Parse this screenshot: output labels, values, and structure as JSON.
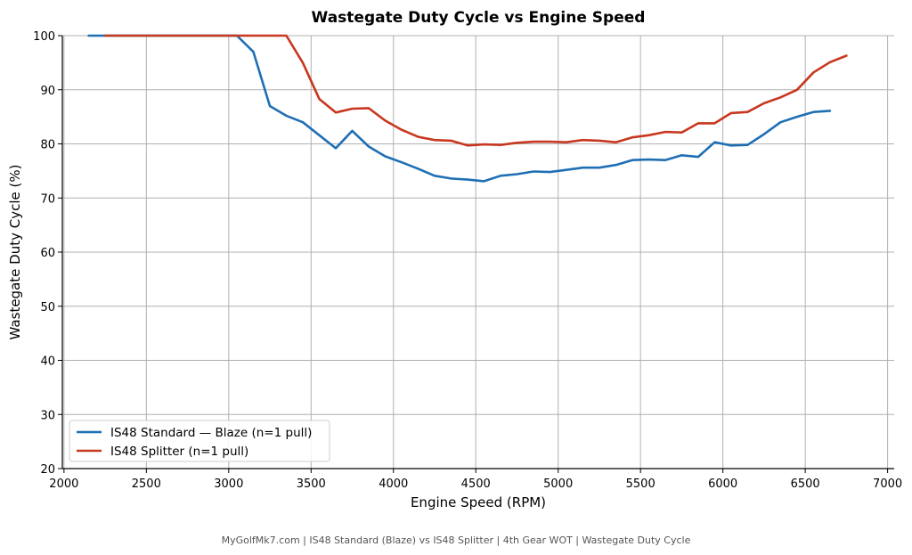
{
  "chart_data": {
    "type": "line",
    "title": "Wastegate Duty Cycle vs Engine Speed",
    "xlabel": "Engine Speed (RPM)",
    "ylabel": "Wastegate Duty Cycle (%)",
    "xlim": [
      1990,
      7040
    ],
    "ylim": [
      20,
      100
    ],
    "xticks": [
      2000,
      2500,
      3000,
      3500,
      4000,
      4500,
      5000,
      5500,
      6000,
      6500,
      7000
    ],
    "yticks": [
      20,
      30,
      40,
      50,
      60,
      70,
      80,
      90,
      100
    ],
    "grid": true,
    "legend_position": "lower-left",
    "series": [
      {
        "name": "IS48 Standard — Blaze (n=1 pull)",
        "color": "#1f6fb4",
        "x": [
          2150,
          2250,
          2350,
          2450,
          2550,
          2650,
          2750,
          2850,
          2950,
          3050,
          3150,
          3250,
          3350,
          3450,
          3550,
          3650,
          3750,
          3850,
          3950,
          4050,
          4150,
          4250,
          4350,
          4450,
          4550,
          4650,
          4750,
          4850,
          4950,
          5050,
          5150,
          5250,
          5350,
          5450,
          5550,
          5650,
          5750,
          5850,
          5950,
          6050,
          6150,
          6250,
          6350,
          6450,
          6550,
          6650
        ],
        "y": [
          100,
          100,
          100,
          100,
          100,
          100,
          100,
          100,
          100,
          100,
          97,
          87,
          85.2,
          84,
          81.6,
          79.2,
          82.4,
          79.5,
          77.7,
          76.6,
          75.4,
          74.1,
          73.6,
          73.4,
          73.1,
          74.1,
          74.4,
          74.9,
          74.8,
          75.2,
          75.6,
          75.6,
          76.1,
          77,
          77.1,
          77,
          77.9,
          77.6,
          80.3,
          79.7,
          79.8,
          81.8,
          84,
          85,
          85.9,
          86.1
        ]
      },
      {
        "name": "IS48 Splitter (n=1 pull)",
        "color": "#c8371f",
        "x": [
          2250,
          2350,
          2450,
          2550,
          2650,
          2750,
          2850,
          2950,
          3050,
          3150,
          3250,
          3350,
          3450,
          3550,
          3650,
          3750,
          3850,
          3950,
          4050,
          4150,
          4250,
          4350,
          4450,
          4550,
          4650,
          4750,
          4850,
          4950,
          5050,
          5150,
          5250,
          5350,
          5450,
          5550,
          5650,
          5750,
          5850,
          5950,
          6050,
          6150,
          6250,
          6350,
          6450,
          6550,
          6650,
          6750
        ],
        "y": [
          100,
          100,
          100,
          100,
          100,
          100,
          100,
          100,
          100,
          100,
          100,
          100,
          95,
          88.3,
          85.8,
          86.5,
          86.6,
          84.3,
          82.6,
          81.3,
          80.7,
          80.6,
          79.7,
          79.9,
          79.8,
          80.2,
          80.4,
          80.4,
          80.3,
          80.7,
          80.6,
          80.3,
          81.2,
          81.6,
          82.2,
          82.1,
          83.8,
          83.8,
          85.7,
          85.9,
          87.5,
          88.6,
          90,
          93.2,
          95.1,
          96.3
        ]
      }
    ],
    "footer": "MyGolfMk7.com  |  IS48 Standard (Blaze) vs IS48 Splitter  |  4th Gear WOT  |  Wastegate Duty Cycle"
  }
}
